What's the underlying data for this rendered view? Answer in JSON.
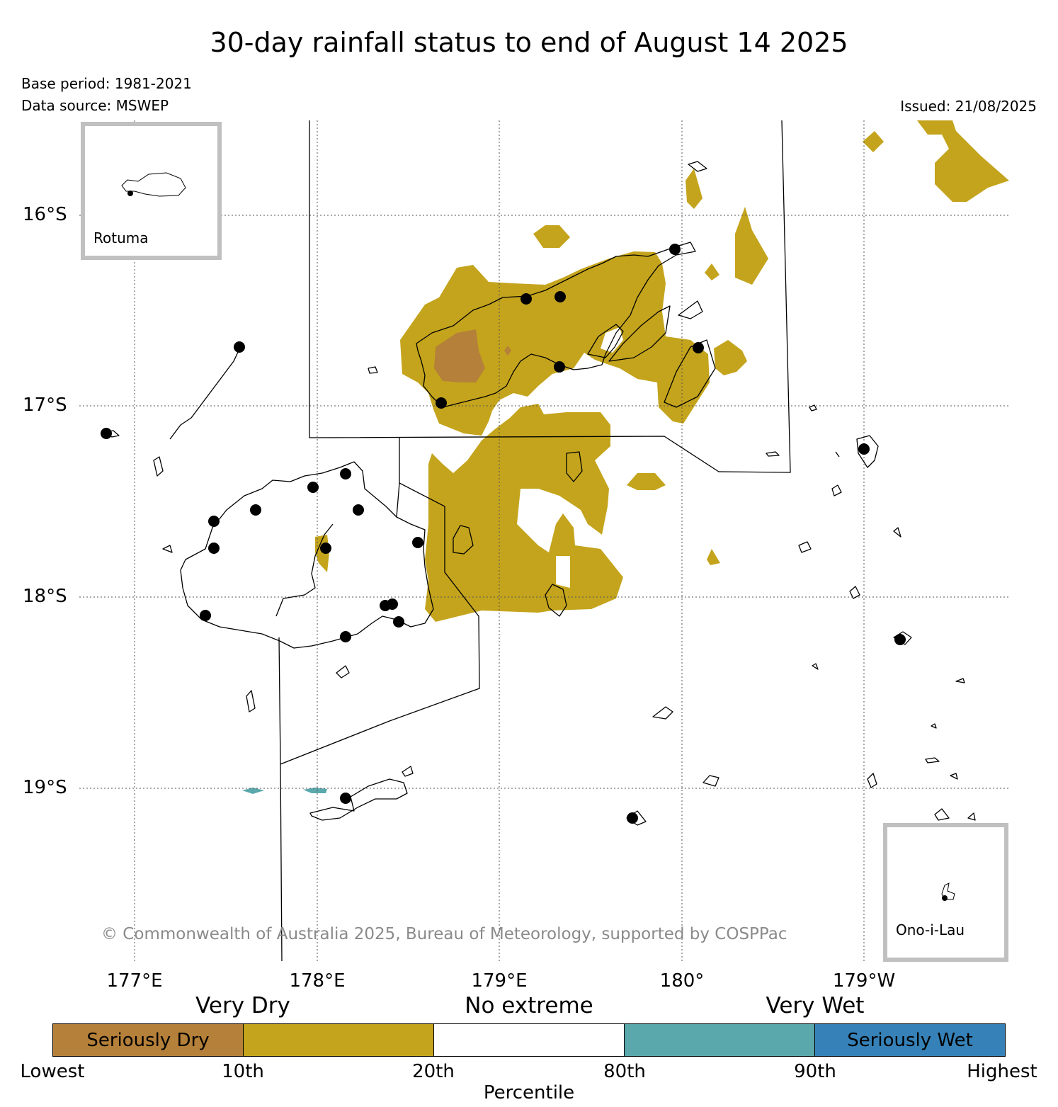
{
  "header": {
    "title": "30-day rainfall status to end of August 14 2025",
    "base_period": "Base period: 1981-2021",
    "data_source": "Data source: MSWEP",
    "issued": "Issued: 21/08/2025"
  },
  "map": {
    "lat_labels": [
      "16°S",
      "17°S",
      "18°S",
      "19°S"
    ],
    "lon_labels": [
      "177°E",
      "178°E",
      "179°E",
      "180°",
      "179°W"
    ],
    "copyright": "© Commonwealth of Australia 2025, Bureau of Meteorology, supported by COSPPac",
    "insets": [
      {
        "name": "Rotuma"
      },
      {
        "name": "Ono-i-Lau"
      }
    ],
    "colors": {
      "seriously_dry": "#b58039",
      "very_dry": "#c4a41c",
      "no_extreme": "#ffffff",
      "very_wet": "#5aa8ac",
      "seriously_wet": "#3682b8",
      "station": "#000000",
      "inset_frame": "#c0c0c0"
    }
  },
  "legend": {
    "headers": {
      "very_dry": "Very Dry",
      "no_extreme": "No extreme",
      "very_wet": "Very Wet"
    },
    "segments": [
      {
        "label": "Seriously Dry",
        "color": "#b58039"
      },
      {
        "label": "",
        "color": "#c4a41c"
      },
      {
        "label": "",
        "color": "#ffffff"
      },
      {
        "label": "",
        "color": "#5aa8ac"
      },
      {
        "label": "Seriously Wet",
        "color": "#3682b8"
      }
    ],
    "ticks": [
      "Lowest",
      "10th",
      "20th",
      "80th",
      "90th",
      "Highest"
    ],
    "axis_label": "Percentile"
  }
}
